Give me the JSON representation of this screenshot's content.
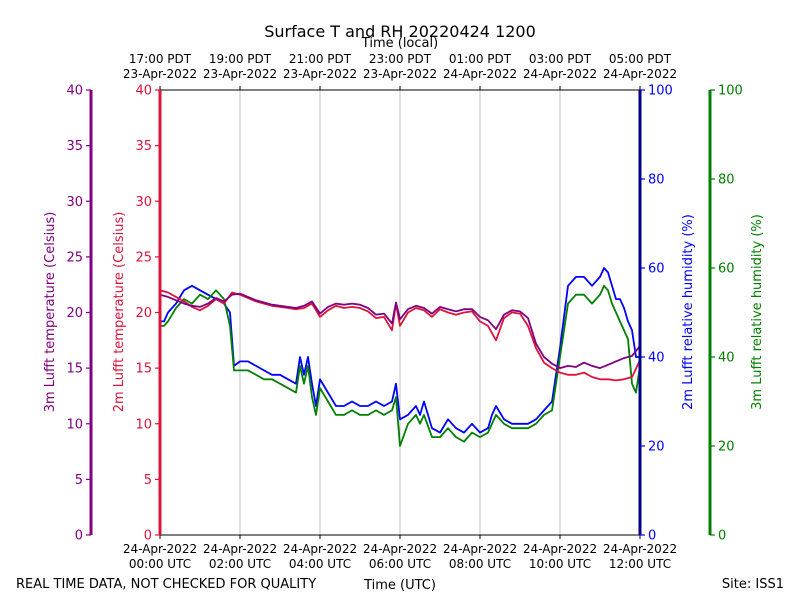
{
  "chart_data": {
    "type": "line",
    "title": "Surface T and RH 20220424 1200",
    "top_axis_label": "Time (local)",
    "xlabel": "Time (UTC)",
    "footer_left": "REAL TIME DATA, NOT CHECKED FOR QUALITY",
    "footer_right": "Site: ISS1",
    "x_range_hours": [
      0,
      12
    ],
    "x_ticks_utc": [
      {
        "h": 0,
        "line1": "24-Apr-2022",
        "line2": "00:00 UTC"
      },
      {
        "h": 2,
        "line1": "24-Apr-2022",
        "line2": "02:00 UTC"
      },
      {
        "h": 4,
        "line1": "24-Apr-2022",
        "line2": "04:00 UTC"
      },
      {
        "h": 6,
        "line1": "24-Apr-2022",
        "line2": "06:00 UTC"
      },
      {
        "h": 8,
        "line1": "24-Apr-2022",
        "line2": "08:00 UTC"
      },
      {
        "h": 10,
        "line1": "24-Apr-2022",
        "line2": "10:00 UTC"
      },
      {
        "h": 12,
        "line1": "24-Apr-2022",
        "line2": "12:00 UTC"
      }
    ],
    "x_ticks_local": [
      {
        "h": 0,
        "line1": "17:00 PDT",
        "line2": "23-Apr-2022"
      },
      {
        "h": 2,
        "line1": "19:00 PDT",
        "line2": "23-Apr-2022"
      },
      {
        "h": 4,
        "line1": "21:00 PDT",
        "line2": "23-Apr-2022"
      },
      {
        "h": 6,
        "line1": "23:00 PDT",
        "line2": "23-Apr-2022"
      },
      {
        "h": 8,
        "line1": "01:00 PDT",
        "line2": "24-Apr-2022"
      },
      {
        "h": 10,
        "line1": "03:00 PDT",
        "line2": "24-Apr-2022"
      },
      {
        "h": 12,
        "line1": "05:00 PDT",
        "line2": "24-Apr-2022"
      }
    ],
    "axes": {
      "t3m": {
        "label": "3m Lufft temperature (Celsius)",
        "color": "#800080",
        "ylim": [
          0,
          40
        ],
        "ticks": [
          0,
          5,
          10,
          15,
          20,
          25,
          30,
          35,
          40
        ]
      },
      "t2m": {
        "label": "2m Lufft temperature (Celsius)",
        "color": "#dc143c",
        "ylim": [
          0,
          40
        ],
        "ticks": [
          0,
          5,
          10,
          15,
          20,
          25,
          30,
          35,
          40
        ]
      },
      "rh2m": {
        "label": "2m Lufft relative humidity (%)",
        "color": "#0000ff",
        "ylim": [
          0,
          100
        ],
        "ticks": [
          0,
          20,
          40,
          60,
          80,
          100
        ]
      },
      "rh3m": {
        "label": "3m Lufft relative humidity (%)",
        "color": "#008000",
        "ylim": [
          0,
          100
        ],
        "ticks": [
          0,
          20,
          40,
          60,
          80,
          100
        ]
      }
    },
    "series": [
      {
        "name": "2m Lufft relative humidity",
        "axis": "rh2m",
        "color": "#0000ff",
        "x": [
          0,
          0.1,
          0.2,
          0.4,
          0.6,
          0.8,
          1.0,
          1.2,
          1.4,
          1.6,
          1.75,
          1.85,
          2.0,
          2.2,
          2.4,
          2.6,
          2.8,
          3.0,
          3.2,
          3.4,
          3.5,
          3.6,
          3.7,
          3.8,
          3.9,
          4.0,
          4.2,
          4.4,
          4.6,
          4.8,
          5.0,
          5.2,
          5.4,
          5.6,
          5.8,
          5.9,
          6.0,
          6.2,
          6.4,
          6.5,
          6.6,
          6.8,
          7.0,
          7.2,
          7.4,
          7.6,
          7.8,
          8.0,
          8.2,
          8.3,
          8.4,
          8.6,
          8.8,
          9.0,
          9.2,
          9.4,
          9.6,
          9.8,
          10.0,
          10.2,
          10.4,
          10.6,
          10.8,
          11.0,
          11.1,
          11.2,
          11.3,
          11.4,
          11.5,
          11.6,
          11.7,
          11.8,
          11.9,
          12.0
        ],
        "values": [
          48,
          48,
          50,
          52,
          55,
          56,
          55,
          54,
          53,
          52,
          50,
          38,
          39,
          39,
          38,
          37,
          36,
          36,
          35,
          34,
          40,
          36,
          40,
          34,
          29,
          35,
          32,
          29,
          29,
          30,
          29,
          29,
          30,
          29,
          30,
          34,
          26,
          27,
          29,
          27,
          30,
          24,
          23,
          26,
          24,
          23,
          25,
          23,
          24,
          27,
          29,
          26,
          25,
          25,
          25,
          26,
          28,
          30,
          42,
          56,
          58,
          58,
          56,
          58,
          60,
          59,
          56,
          53,
          53,
          51,
          48,
          46,
          40,
          40
        ]
      },
      {
        "name": "3m Lufft relative humidity",
        "axis": "rh3m",
        "color": "#008000",
        "x": [
          0,
          0.1,
          0.2,
          0.4,
          0.6,
          0.8,
          1.0,
          1.2,
          1.4,
          1.6,
          1.75,
          1.85,
          2.0,
          2.2,
          2.4,
          2.6,
          2.8,
          3.0,
          3.2,
          3.4,
          3.5,
          3.6,
          3.7,
          3.8,
          3.9,
          4.0,
          4.2,
          4.4,
          4.6,
          4.8,
          5.0,
          5.2,
          5.4,
          5.6,
          5.8,
          5.9,
          6.0,
          6.2,
          6.4,
          6.5,
          6.6,
          6.8,
          7.0,
          7.2,
          7.4,
          7.6,
          7.8,
          8.0,
          8.2,
          8.3,
          8.4,
          8.6,
          8.8,
          9.0,
          9.2,
          9.4,
          9.6,
          9.8,
          10.0,
          10.2,
          10.4,
          10.6,
          10.8,
          11.0,
          11.1,
          11.2,
          11.3,
          11.4,
          11.5,
          11.6,
          11.7,
          11.8,
          11.9,
          12.0
        ],
        "values": [
          47,
          47,
          48,
          51,
          53,
          52,
          54,
          53,
          55,
          53,
          47,
          37,
          37,
          37,
          36,
          35,
          35,
          34,
          33,
          32,
          38,
          34,
          38,
          31,
          27,
          33,
          30,
          27,
          27,
          28,
          27,
          27,
          28,
          27,
          28,
          31,
          20,
          25,
          27,
          25,
          27,
          22,
          22,
          24,
          22,
          21,
          23,
          22,
          23,
          25,
          27,
          25,
          24,
          24,
          24,
          25,
          27,
          28,
          40,
          52,
          54,
          54,
          52,
          54,
          56,
          55,
          52,
          50,
          48,
          46,
          44,
          34,
          32,
          38
        ]
      },
      {
        "name": "2m Lufft temperature",
        "axis": "t2m",
        "color": "#dc143c",
        "x": [
          0,
          0.2,
          0.4,
          0.6,
          0.8,
          1.0,
          1.2,
          1.4,
          1.6,
          1.8,
          2.0,
          2.2,
          2.4,
          2.6,
          2.8,
          3.0,
          3.2,
          3.4,
          3.6,
          3.8,
          4.0,
          4.2,
          4.4,
          4.6,
          4.8,
          5.0,
          5.2,
          5.4,
          5.6,
          5.8,
          5.9,
          6.0,
          6.2,
          6.4,
          6.6,
          6.8,
          7.0,
          7.2,
          7.4,
          7.6,
          7.8,
          8.0,
          8.2,
          8.4,
          8.6,
          8.8,
          9.0,
          9.2,
          9.4,
          9.6,
          9.8,
          10.0,
          10.2,
          10.4,
          10.6,
          10.8,
          11.0,
          11.2,
          11.4,
          11.6,
          11.8,
          12.0
        ],
        "values": [
          22,
          21.8,
          21.4,
          21,
          20.5,
          20.2,
          20.6,
          21.2,
          20.8,
          21.8,
          21.6,
          21.3,
          21,
          20.8,
          20.6,
          20.5,
          20.4,
          20.3,
          20.4,
          20.8,
          19.6,
          20.2,
          20.6,
          20.4,
          20.5,
          20.4,
          20.1,
          19.5,
          19.6,
          18.4,
          20.8,
          18.8,
          20,
          20.4,
          20.2,
          19.6,
          20.3,
          20,
          19.8,
          20,
          20.1,
          19.2,
          18.8,
          17.5,
          19.5,
          20,
          19.9,
          18.8,
          16.8,
          15.5,
          15,
          14.6,
          14.4,
          14.4,
          14.6,
          14.2,
          14,
          14,
          13.9,
          14,
          14.2,
          15.7
        ]
      },
      {
        "name": "3m Lufft temperature",
        "axis": "t3m",
        "color": "#800080",
        "x": [
          0,
          0.2,
          0.4,
          0.6,
          0.8,
          1.0,
          1.2,
          1.4,
          1.6,
          1.8,
          2.0,
          2.2,
          2.4,
          2.6,
          2.8,
          3.0,
          3.2,
          3.4,
          3.6,
          3.8,
          4.0,
          4.2,
          4.4,
          4.6,
          4.8,
          5.0,
          5.2,
          5.4,
          5.6,
          5.8,
          5.9,
          6.0,
          6.2,
          6.4,
          6.6,
          6.8,
          7.0,
          7.2,
          7.4,
          7.6,
          7.8,
          8.0,
          8.2,
          8.4,
          8.6,
          8.8,
          9.0,
          9.2,
          9.4,
          9.6,
          9.8,
          10.0,
          10.2,
          10.4,
          10.6,
          10.8,
          11.0,
          11.2,
          11.4,
          11.6,
          11.8,
          12.0
        ],
        "values": [
          21.6,
          21.4,
          21.1,
          20.8,
          20.6,
          20.5,
          20.8,
          21.3,
          21,
          21.6,
          21.7,
          21.4,
          21.1,
          20.9,
          20.7,
          20.6,
          20.5,
          20.4,
          20.6,
          21,
          19.9,
          20.5,
          20.8,
          20.7,
          20.8,
          20.7,
          20.4,
          19.8,
          19.9,
          19,
          20.9,
          19.4,
          20.3,
          20.6,
          20.4,
          19.9,
          20.5,
          20.3,
          20.1,
          20.3,
          20.3,
          19.6,
          19.3,
          18.5,
          19.8,
          20.2,
          20.1,
          19.5,
          17.2,
          16,
          15.4,
          15,
          15.2,
          15.1,
          15.5,
          15.2,
          15,
          15.3,
          15.6,
          15.9,
          16.1,
          17
        ]
      }
    ]
  }
}
